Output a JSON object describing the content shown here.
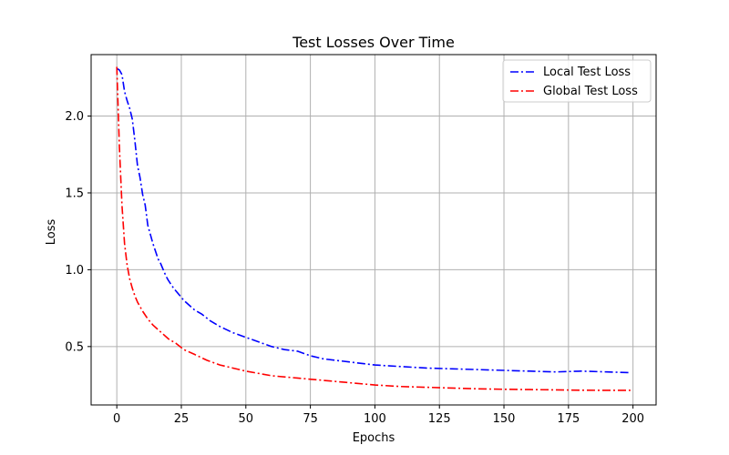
{
  "chart_data": {
    "type": "line",
    "title": "Test Losses Over Time",
    "xlabel": "Epochs",
    "ylabel": "Loss",
    "xlim": [
      -9.95,
      208.95
    ],
    "ylim": [
      0.12,
      2.4
    ],
    "xticks": [
      0,
      25,
      50,
      75,
      100,
      125,
      150,
      175,
      200
    ],
    "yticks": [
      0.5,
      1.0,
      1.5,
      2.0
    ],
    "ytick_labels": [
      "0.5",
      "1.0",
      "1.5",
      "2.0"
    ],
    "grid": true,
    "legend_position": "top-right",
    "series": [
      {
        "name": "Local Test Loss",
        "color": "#0000ff",
        "linestyle": "dashdot",
        "points": [
          [
            0,
            2.31
          ],
          [
            1,
            2.3
          ],
          [
            2,
            2.27
          ],
          [
            3,
            2.16
          ],
          [
            4,
            2.1
          ],
          [
            5,
            2.05
          ],
          [
            6,
            1.98
          ],
          [
            7,
            1.84
          ],
          [
            8,
            1.68
          ],
          [
            9,
            1.6
          ],
          [
            10,
            1.49
          ],
          [
            11,
            1.42
          ],
          [
            12,
            1.29
          ],
          [
            13,
            1.23
          ],
          [
            14,
            1.17
          ],
          [
            15,
            1.12
          ],
          [
            16,
            1.07
          ],
          [
            17,
            1.04
          ],
          [
            18,
            1.0
          ],
          [
            19,
            0.96
          ],
          [
            20,
            0.93
          ],
          [
            22,
            0.88
          ],
          [
            24,
            0.84
          ],
          [
            26,
            0.8
          ],
          [
            28,
            0.77
          ],
          [
            30,
            0.74
          ],
          [
            33,
            0.71
          ],
          [
            36,
            0.67
          ],
          [
            40,
            0.63
          ],
          [
            45,
            0.59
          ],
          [
            50,
            0.56
          ],
          [
            55,
            0.53
          ],
          [
            60,
            0.5
          ],
          [
            65,
            0.48
          ],
          [
            70,
            0.47
          ],
          [
            75,
            0.44
          ],
          [
            80,
            0.42
          ],
          [
            90,
            0.4
          ],
          [
            100,
            0.38
          ],
          [
            110,
            0.37
          ],
          [
            120,
            0.36
          ],
          [
            130,
            0.355
          ],
          [
            140,
            0.35
          ],
          [
            150,
            0.345
          ],
          [
            160,
            0.34
          ],
          [
            170,
            0.335
          ],
          [
            180,
            0.34
          ],
          [
            190,
            0.335
          ],
          [
            199,
            0.33
          ]
        ]
      },
      {
        "name": "Global Test Loss",
        "color": "#ff0000",
        "linestyle": "dashdot",
        "points": [
          [
            0,
            2.32
          ],
          [
            1,
            1.8
          ],
          [
            2,
            1.42
          ],
          [
            3,
            1.17
          ],
          [
            4,
            1.03
          ],
          [
            5,
            0.94
          ],
          [
            6,
            0.88
          ],
          [
            7,
            0.83
          ],
          [
            8,
            0.79
          ],
          [
            9,
            0.76
          ],
          [
            10,
            0.73
          ],
          [
            12,
            0.68
          ],
          [
            14,
            0.64
          ],
          [
            16,
            0.61
          ],
          [
            18,
            0.58
          ],
          [
            20,
            0.55
          ],
          [
            23,
            0.52
          ],
          [
            26,
            0.48
          ],
          [
            30,
            0.45
          ],
          [
            35,
            0.41
          ],
          [
            40,
            0.38
          ],
          [
            45,
            0.36
          ],
          [
            50,
            0.34
          ],
          [
            55,
            0.325
          ],
          [
            60,
            0.31
          ],
          [
            70,
            0.295
          ],
          [
            80,
            0.28
          ],
          [
            90,
            0.265
          ],
          [
            100,
            0.25
          ],
          [
            110,
            0.24
          ],
          [
            120,
            0.235
          ],
          [
            130,
            0.23
          ],
          [
            140,
            0.225
          ],
          [
            150,
            0.222
          ],
          [
            160,
            0.22
          ],
          [
            170,
            0.218
          ],
          [
            180,
            0.216
          ],
          [
            190,
            0.215
          ],
          [
            199,
            0.215
          ]
        ]
      }
    ]
  }
}
